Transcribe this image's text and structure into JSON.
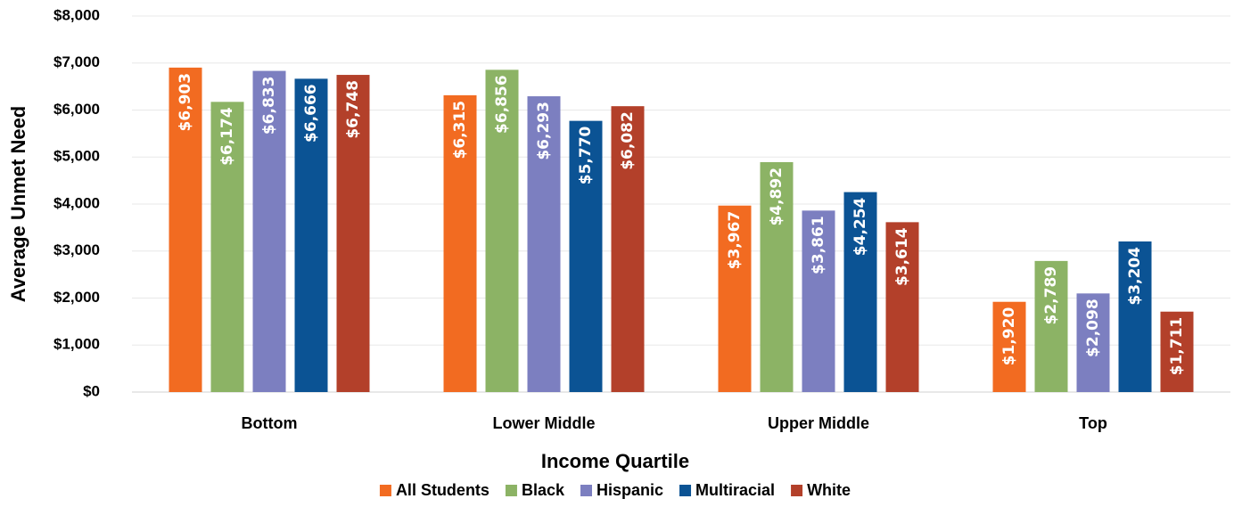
{
  "chart_data": {
    "type": "bar",
    "x_label": "Income Quartile",
    "y_label": "Average Unmet Need",
    "categories": [
      "Bottom",
      "Lower Middle",
      "Upper Middle",
      "Top"
    ],
    "series": [
      {
        "name": "All Students",
        "color": "#f26b21",
        "values": [
          6903,
          6315,
          3967,
          1920
        ],
        "value_labels": [
          "$6,903",
          "$6,315",
          "$3,967",
          "$1,920"
        ]
      },
      {
        "name": "Black",
        "color": "#8cb365",
        "values": [
          6174,
          6856,
          4892,
          2789
        ],
        "value_labels": [
          "$6,174",
          "$6,856",
          "$4,892",
          "$2,789"
        ]
      },
      {
        "name": "Hispanic",
        "color": "#7c7fc0",
        "values": [
          6833,
          6293,
          3861,
          2098
        ],
        "value_labels": [
          "$6,833",
          "$6,293",
          "$3,861",
          "$2,098"
        ]
      },
      {
        "name": "Multiracial",
        "color": "#0b5394",
        "values": [
          6666,
          5770,
          4254,
          3204
        ],
        "value_labels": [
          "$6,666",
          "$5,770",
          "$4,254",
          "$3,204"
        ]
      },
      {
        "name": "White",
        "color": "#b3402a",
        "values": [
          6748,
          6082,
          3614,
          1711
        ],
        "value_labels": [
          "$6,748",
          "$6,082",
          "$3,614",
          "$1,711"
        ]
      }
    ],
    "ylim": [
      0,
      8000
    ],
    "yticks": [
      {
        "value": 0,
        "label": "$0"
      },
      {
        "value": 1000,
        "label": "$1,000"
      },
      {
        "value": 2000,
        "label": "$2,000"
      },
      {
        "value": 3000,
        "label": "$3,000"
      },
      {
        "value": 4000,
        "label": "$4,000"
      },
      {
        "value": 5000,
        "label": "$5,000"
      },
      {
        "value": 6000,
        "label": "$6,000"
      },
      {
        "value": 7000,
        "label": "$7,000"
      },
      {
        "value": 8000,
        "label": "$8,000"
      }
    ],
    "grid": true,
    "legend": "bottom"
  }
}
